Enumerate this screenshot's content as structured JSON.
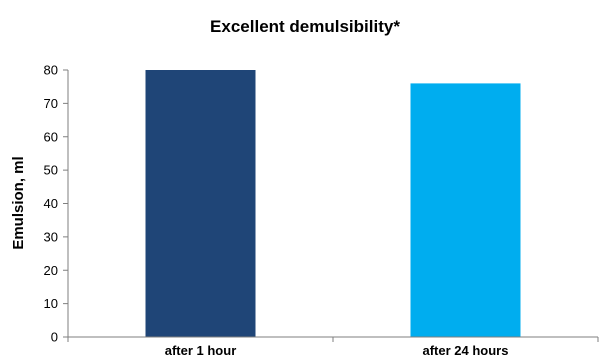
{
  "chart_data": {
    "type": "bar",
    "title": "Excellent demulsibility*",
    "xlabel": "",
    "ylabel": "Emulsion, ml",
    "categories": [
      "after 1 hour",
      "after 24 hours"
    ],
    "values": [
      80,
      76
    ],
    "ylim": [
      0,
      80
    ],
    "yticks": [
      0,
      10,
      20,
      30,
      40,
      50,
      60,
      70,
      80
    ],
    "grid": false,
    "legend": "none",
    "colors": [
      "#1f4577",
      "#00adef"
    ],
    "axis_color": "#7f7f7f"
  }
}
